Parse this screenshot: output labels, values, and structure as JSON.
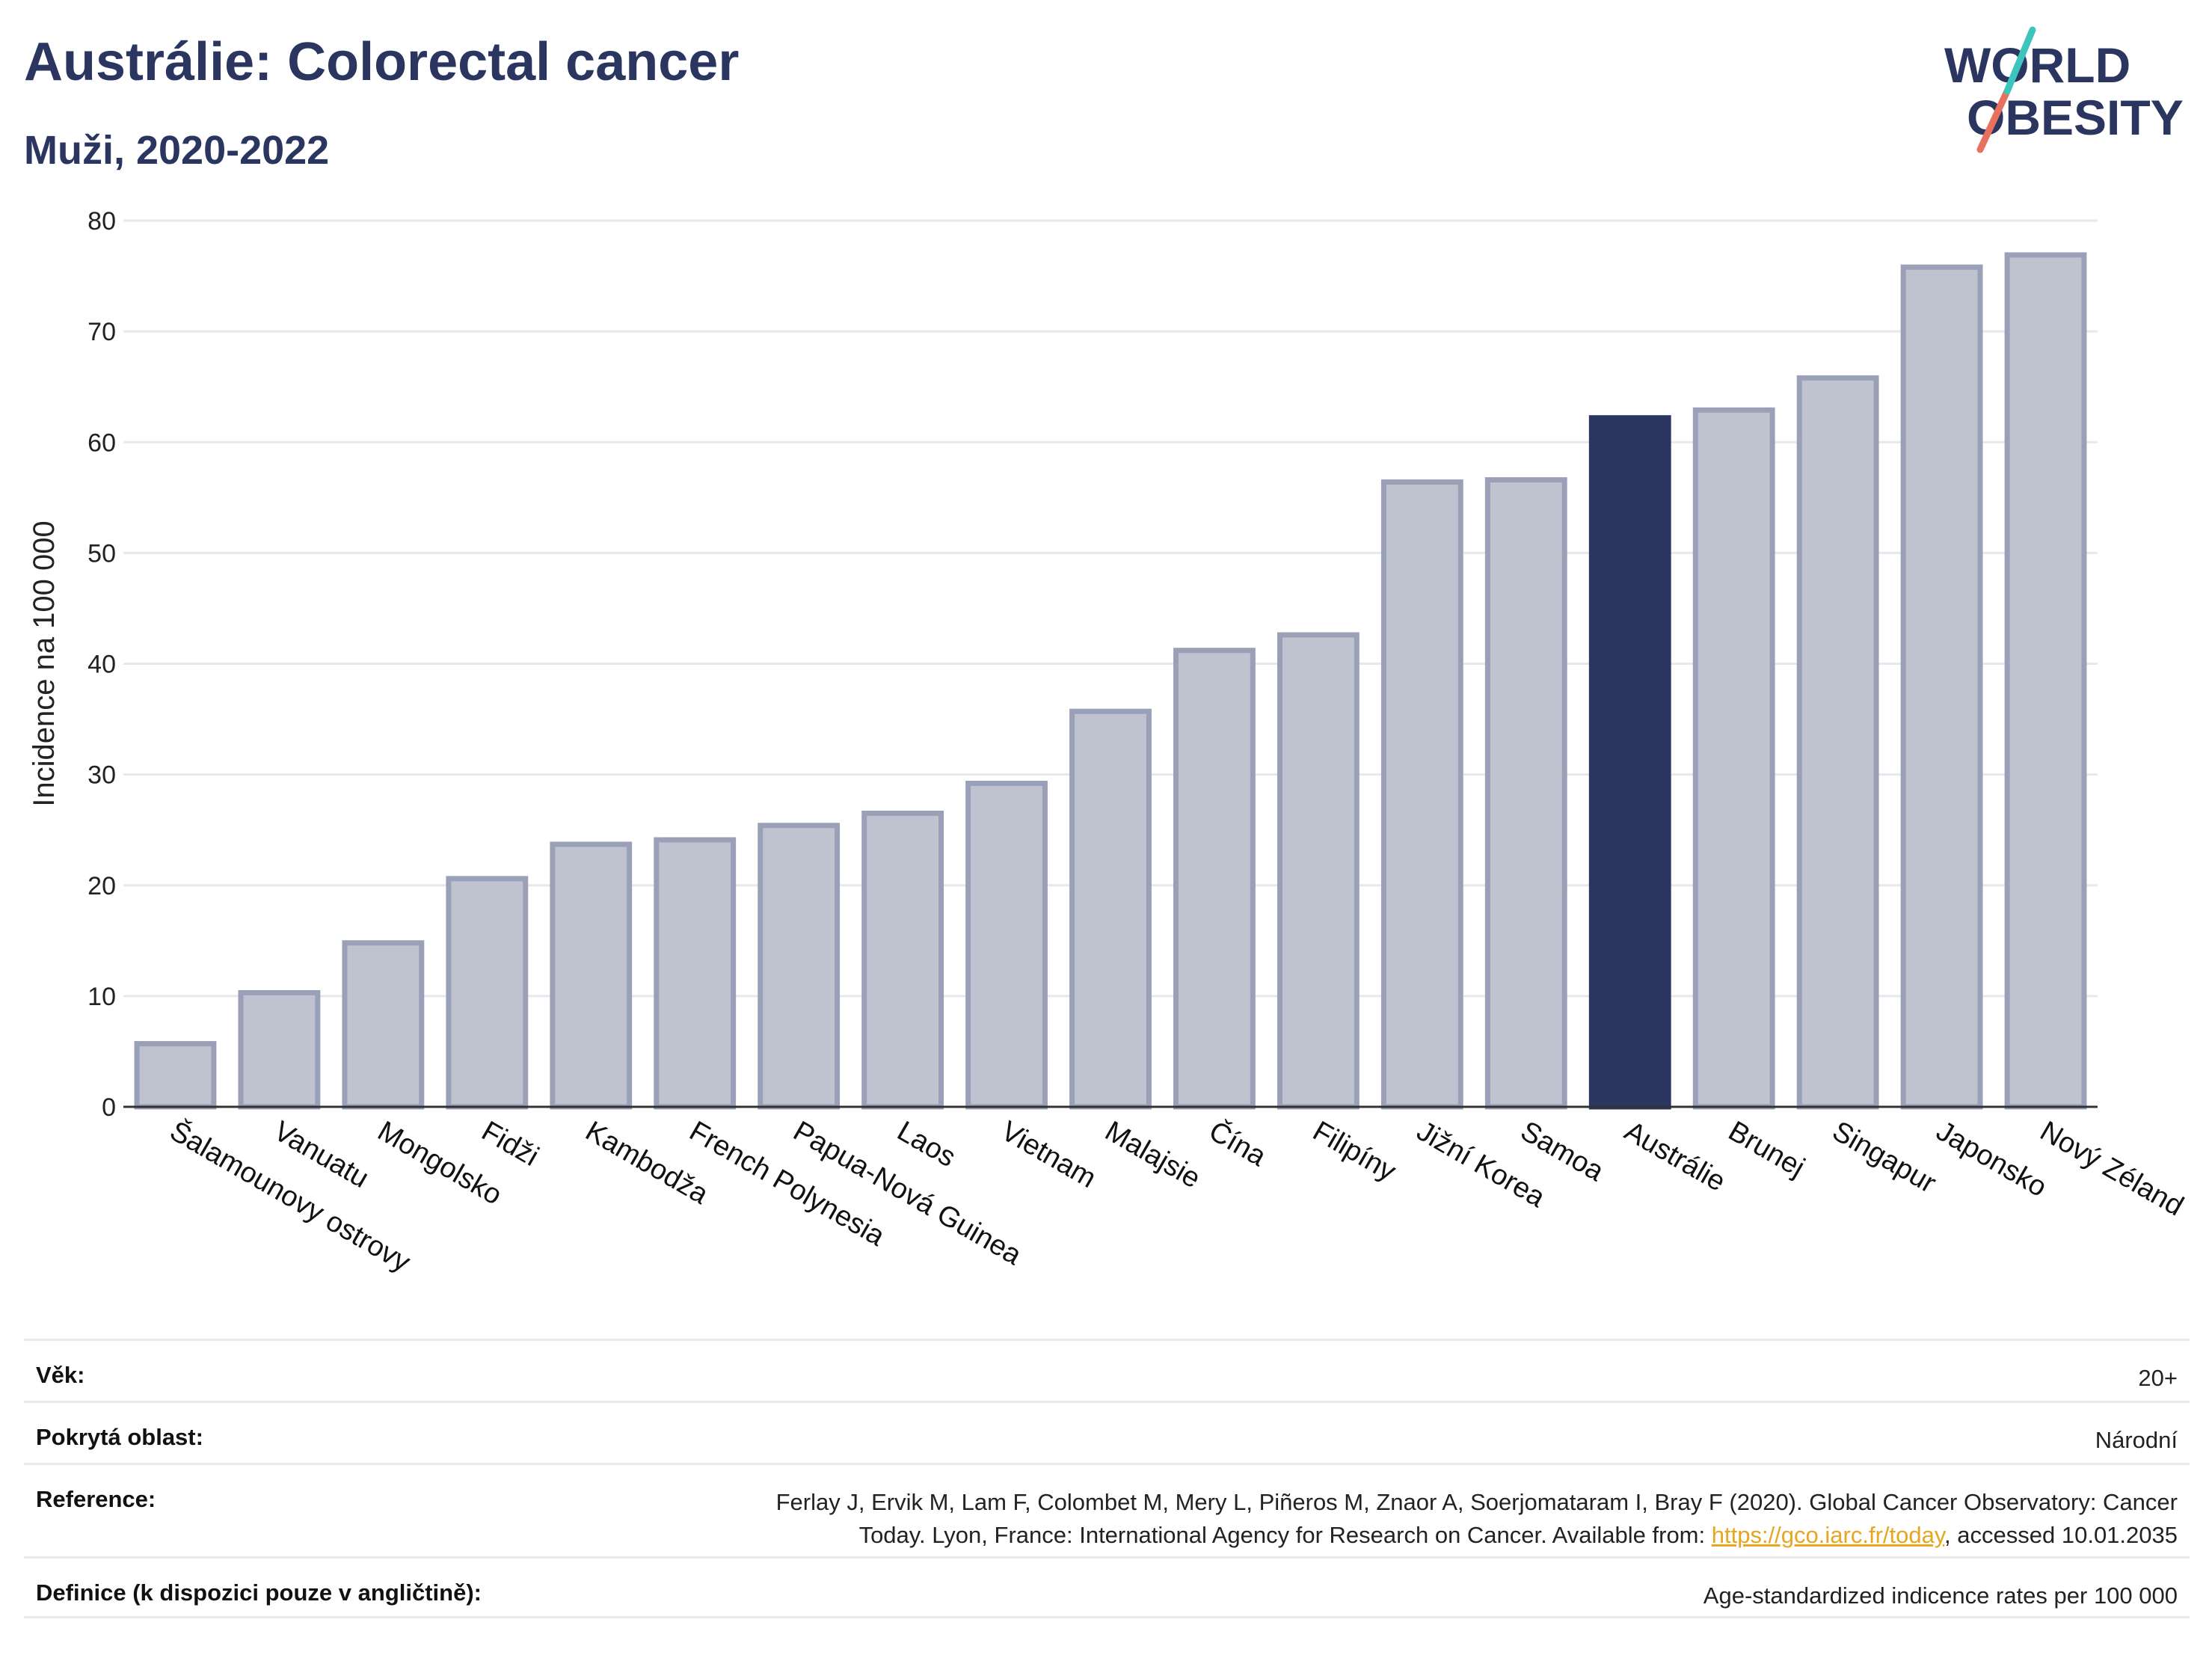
{
  "header": {
    "title": "Austrálie: Colorectal cancer",
    "subtitle": "Muži, 2020-2022"
  },
  "logo": {
    "line1": "WORLD",
    "line2": "OBESITY",
    "text": "WORLD OBESITY",
    "accent_teal": "#3cc4bd",
    "accent_red": "#e8705e"
  },
  "chart_data": {
    "type": "bar",
    "ylabel": "Incidence na 100 000",
    "ylim": [
      0,
      80
    ],
    "yticks": [
      0,
      10,
      20,
      30,
      40,
      50,
      60,
      70,
      80
    ],
    "categories": [
      "Šalamounovy ostrovy",
      "Vanuatu",
      "Mongolsko",
      "Fidži",
      "Kambodža",
      "French Polynesia",
      "Papua-Nová Guinea",
      "Laos",
      "Vietnam",
      "Malajsie",
      "Čína",
      "Filipíny",
      "Jižní Korea",
      "Samoa",
      "Austrálie",
      "Brunej",
      "Singapur",
      "Japonsko",
      "Nový Zéland"
    ],
    "values": [
      5.7,
      10.3,
      14.8,
      20.6,
      23.7,
      24.1,
      25.4,
      26.5,
      29.2,
      35.7,
      41.2,
      42.6,
      56.4,
      56.6,
      62.2,
      62.9,
      65.8,
      75.8,
      76.9
    ],
    "highlight": "Austrálie",
    "colors": {
      "bar": "#bfc2cf",
      "bar_edge": "#9aa0b8",
      "highlight": "#2a3560",
      "grid": "#e6e8ee",
      "axis": "#333333"
    },
    "grid": true
  },
  "footer": {
    "rows": [
      {
        "label": "Věk:",
        "value": "20+"
      },
      {
        "label": "Pokrytá oblast:",
        "value": "Národní"
      },
      {
        "label": "Reference:",
        "value_line1": "Ferlay J, Ervik M, Lam F, Colombet M, Mery L, Piñeros M, Znaor A, Soerjomataram I, Bray F (2020). Global Cancer Observatory: Cancer",
        "value_line2_pre": "Today. Lyon, France: International Agency for Research on Cancer. Available from: ",
        "link": "https://gco.iarc.fr/today",
        "value_line2_post": ", accessed 10.01.2035"
      },
      {
        "label": "Definice (k dispozici pouze v angličtině):",
        "value": "Age-standardized indicence rates per 100 000"
      }
    ]
  }
}
